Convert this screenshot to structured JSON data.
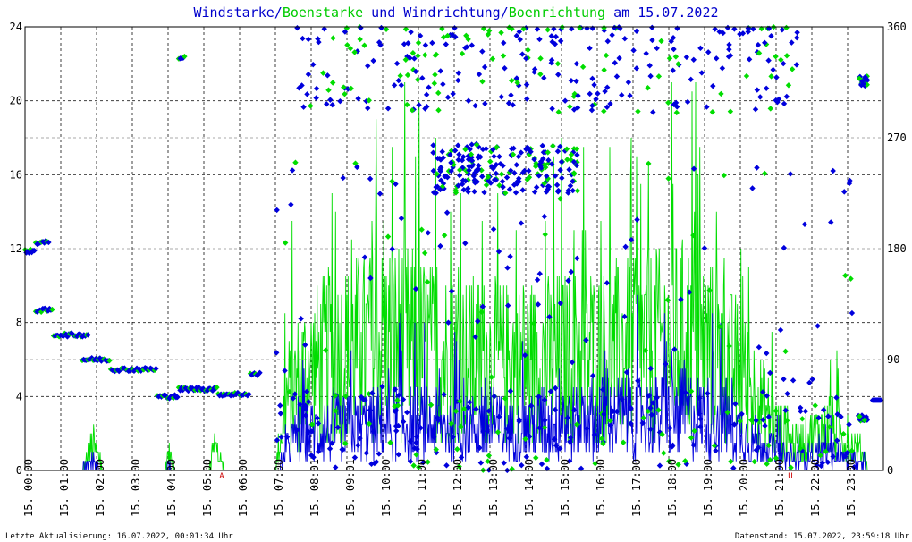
{
  "chart_data": {
    "type": "line",
    "title_parts": [
      {
        "text": "Windstarke",
        "color": "#0000cc"
      },
      {
        "text": "/",
        "color": "#0000cc"
      },
      {
        "text": "Boenstarke",
        "color": "#00cc00"
      },
      {
        "text": " und ",
        "color": "#0000cc"
      },
      {
        "text": "Windrichtung",
        "color": "#0000cc"
      },
      {
        "text": "/",
        "color": "#0000cc"
      },
      {
        "text": "Boenrichtung",
        "color": "#00cc00"
      },
      {
        "text": " am 15.07.2022",
        "color": "#0000cc"
      }
    ],
    "y_left": {
      "ticks": [
        0,
        4,
        8,
        12,
        16,
        20,
        24
      ],
      "range": [
        0,
        24
      ]
    },
    "y_right": {
      "ticks": [
        0,
        90,
        180,
        270,
        360
      ],
      "range": [
        0,
        360
      ]
    },
    "x_hours_range": [
      0,
      24
    ],
    "x_tick_labels": [
      "15. 00:00",
      "15. 01:00",
      "15. 02:00",
      "15. 03:00",
      "15. 04:00",
      "15. 05:00",
      "15. 06:00",
      "15. 07:00",
      "15. 08:01",
      "15. 09:01",
      "15. 10:00",
      "15. 11:00",
      "15. 12:00",
      "15. 13:00",
      "15. 14:00",
      "15. 15:00",
      "15. 16:00",
      "15. 17:00",
      "15. 18:00",
      "15. 19:00",
      "15. 20:00",
      "15. 21:00",
      "15. 22:00",
      "15. 23:00"
    ],
    "markers": [
      {
        "label": "A",
        "hour": 5.5
      },
      {
        "label": "U",
        "hour": 21.4
      }
    ],
    "grid": true,
    "series": [
      {
        "name": "Windstarke",
        "color": "#0000dd",
        "kind": "line",
        "axis": "left"
      },
      {
        "name": "Boenstarke",
        "color": "#00dd00",
        "kind": "line",
        "axis": "left"
      },
      {
        "name": "Windrichtung",
        "color": "#0000dd",
        "kind": "diamonds",
        "axis": "right"
      },
      {
        "name": "Boenrichtung",
        "color": "#00dd00",
        "kind": "diamonds",
        "axis": "right"
      }
    ],
    "wind_speed_profile": [
      [
        0.0,
        0
      ],
      [
        1.5,
        0
      ],
      [
        1.9,
        0.5
      ],
      [
        2.1,
        0
      ],
      [
        3.9,
        0
      ],
      [
        4.0,
        0.3
      ],
      [
        4.2,
        0
      ],
      [
        7.1,
        0
      ],
      [
        7.4,
        1.5
      ],
      [
        7.8,
        2.0
      ],
      [
        8.5,
        2.2
      ],
      [
        10.5,
        2.6
      ],
      [
        11.5,
        2.4
      ],
      [
        13.5,
        2.2
      ],
      [
        16.0,
        2.8
      ],
      [
        18.5,
        3.0
      ],
      [
        19.5,
        2.6
      ],
      [
        20.5,
        1.5
      ],
      [
        21.0,
        1.0
      ],
      [
        21.5,
        0.6
      ],
      [
        22.5,
        1.0
      ],
      [
        23.4,
        0.4
      ],
      [
        23.6,
        0
      ],
      [
        24.0,
        0
      ]
    ],
    "gust_speed_profile": [
      [
        0.0,
        0
      ],
      [
        1.6,
        0
      ],
      [
        1.9,
        1.5
      ],
      [
        2.2,
        0
      ],
      [
        3.9,
        0
      ],
      [
        4.0,
        1.0
      ],
      [
        4.2,
        0
      ],
      [
        5.1,
        0
      ],
      [
        5.3,
        1.5
      ],
      [
        5.6,
        0
      ],
      [
        7.0,
        0
      ],
      [
        7.3,
        4.0
      ],
      [
        7.8,
        5.5
      ],
      [
        8.5,
        6.5
      ],
      [
        10.5,
        7.5
      ],
      [
        11.5,
        6.5
      ],
      [
        13.5,
        6.0
      ],
      [
        16.0,
        6.5
      ],
      [
        18.5,
        7.5
      ],
      [
        19.5,
        6.5
      ],
      [
        20.5,
        4.0
      ],
      [
        21.0,
        2.5
      ],
      [
        21.5,
        1.5
      ],
      [
        22.5,
        2.5
      ],
      [
        23.4,
        1.0
      ],
      [
        23.6,
        0
      ],
      [
        24.0,
        0
      ]
    ],
    "direction_segments": [
      {
        "from": 0.0,
        "to": 0.3,
        "deg": 178
      },
      {
        "from": 0.3,
        "to": 0.7,
        "deg": 185
      },
      {
        "from": 0.3,
        "to": 0.8,
        "deg": 130
      },
      {
        "from": 0.8,
        "to": 1.8,
        "deg": 110
      },
      {
        "from": 1.6,
        "to": 2.4,
        "deg": 90
      },
      {
        "from": 2.4,
        "to": 3.7,
        "deg": 82
      },
      {
        "from": 3.7,
        "to": 4.3,
        "deg": 60
      },
      {
        "from": 4.3,
        "to": 5.4,
        "deg": 66
      },
      {
        "from": 5.4,
        "to": 6.3,
        "deg": 62
      },
      {
        "from": 6.3,
        "to": 6.6,
        "deg": 78
      },
      {
        "from": 4.3,
        "to": 4.5,
        "deg": 335
      }
    ]
  },
  "footer": {
    "left": "Letzte Aktualisierung: 16.07.2022, 00:01:34 Uhr",
    "right": "Datenstand: 15.07.2022, 23:59:18 Uhr"
  }
}
